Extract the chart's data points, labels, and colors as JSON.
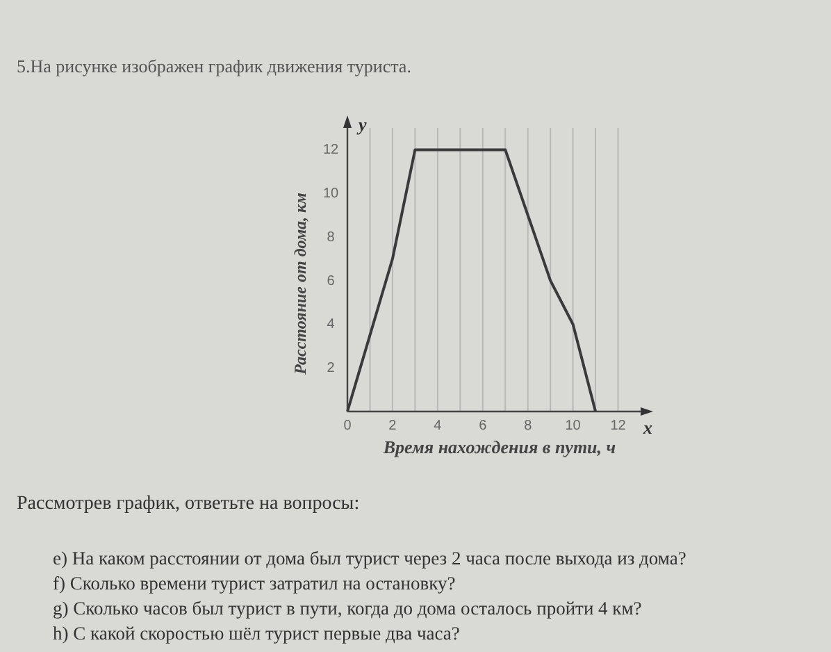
{
  "chart_data": {
    "type": "line",
    "title": "5.На рисунке изображен график движения туриста.",
    "xlabel": "Время нахождения в пути, ч",
    "ylabel": "Расстояние от дома, км",
    "x": [
      0,
      2,
      3,
      7,
      9,
      10,
      11
    ],
    "series": [
      {
        "color": "#3a3a3a",
        "values": [
          0,
          7,
          12,
          12,
          6,
          4,
          0
        ]
      }
    ],
    "xlim": [
      0,
      13
    ],
    "ylim": [
      0,
      13
    ],
    "xticks": [
      0,
      {
        "value": 1,
        "label": null
      },
      2,
      {
        "value": 3,
        "label": null
      },
      4,
      {
        "value": 5,
        "label": null
      },
      6,
      {
        "value": 7,
        "label": null
      },
      8,
      {
        "value": 9,
        "label": null
      },
      10,
      {
        "value": 11,
        "label": null
      },
      12
    ],
    "yticks": [
      2,
      4,
      6,
      8,
      10,
      12
    ],
    "grid": "x",
    "marker": "none",
    "line_style": "solid",
    "annotations": [
      "y",
      "x",
      "Рассмотрев график, ответьте на вопросы:",
      "e) На каком расстоянии от дома был турист через 2 часа после выхода из дома?",
      "f) Сколько времени турист затратил на остановку?",
      "g) Сколько часов был турист в пути, когда до дома осталось пройти 4 км?",
      "h) С какой скоростью шёл турист первые два часа?"
    ]
  }
}
